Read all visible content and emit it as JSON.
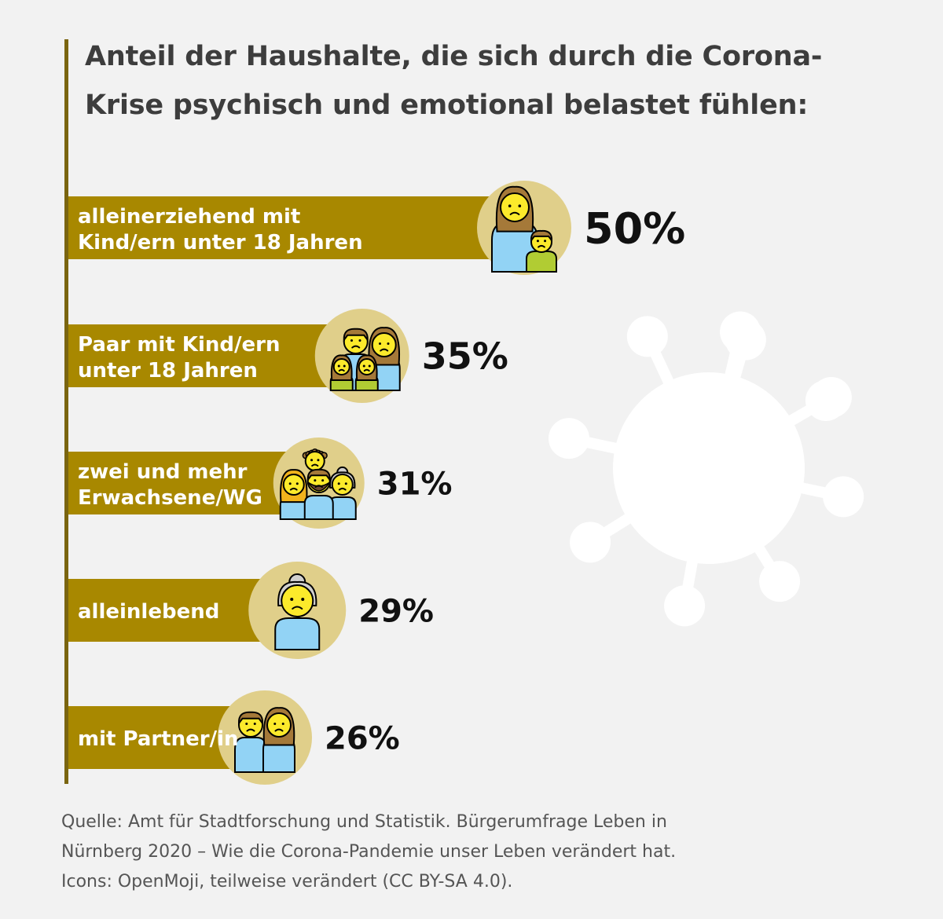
{
  "title": {
    "line1": "Anteil der Haushalte, die sich durch die Corona-",
    "line2": "Krise psychisch und emotional belastet fühlen:"
  },
  "colors": {
    "bar": "#a88800",
    "circle": "#e0cf8a",
    "axis": "#7a6510",
    "virus": "#ffffff",
    "background": "#f2f2f2",
    "skin": "#fcea2b",
    "shirt_blue": "#92d3f5",
    "shirt_green": "#b1cc33",
    "hair_brown": "#a57939",
    "hair_grey": "#d0cfce"
  },
  "chart_data": {
    "type": "bar",
    "orientation": "horizontal",
    "title": "Anteil der Haushalte, die sich durch die Corona-Krise psychisch und emotional belastet fühlen:",
    "unit": "%",
    "xlabel": "",
    "ylabel": "",
    "categories": [
      "alleinerziehend mit Kind/ern unter 18 Jahren",
      "Paar mit Kind/ern unter 18 Jahren",
      "zwei und mehr Erwachsene/WG",
      "alleinlebend",
      "mit Partner/in"
    ],
    "category_lines": [
      [
        "alleinerziehend mit",
        "Kind/ern unter 18 Jahren"
      ],
      [
        "Paar mit Kind/ern",
        "unter 18 Jahren"
      ],
      [
        "zwei und mehr",
        "Erwachsene/WG"
      ],
      [
        "alleinlebend"
      ],
      [
        "mit Partner/in"
      ]
    ],
    "values": [
      50,
      35,
      31,
      29,
      26
    ],
    "value_labels": [
      "50%",
      "35%",
      "31%",
      "29%",
      "26%"
    ],
    "icons": [
      "mother-child-icon",
      "family-icon",
      "group-adults-icon",
      "elderly-woman-icon",
      "couple-icon"
    ]
  },
  "source": {
    "line1": "Quelle: Amt für Stadtforschung und Statistik. Bürgerumfrage Leben in",
    "line2": "Nürnberg 2020 – Wie die Corona-Pandemie unser Leben verändert hat.",
    "line3": "Icons: OpenMoji, teilweise verändert (CC BY-SA 4.0)."
  }
}
